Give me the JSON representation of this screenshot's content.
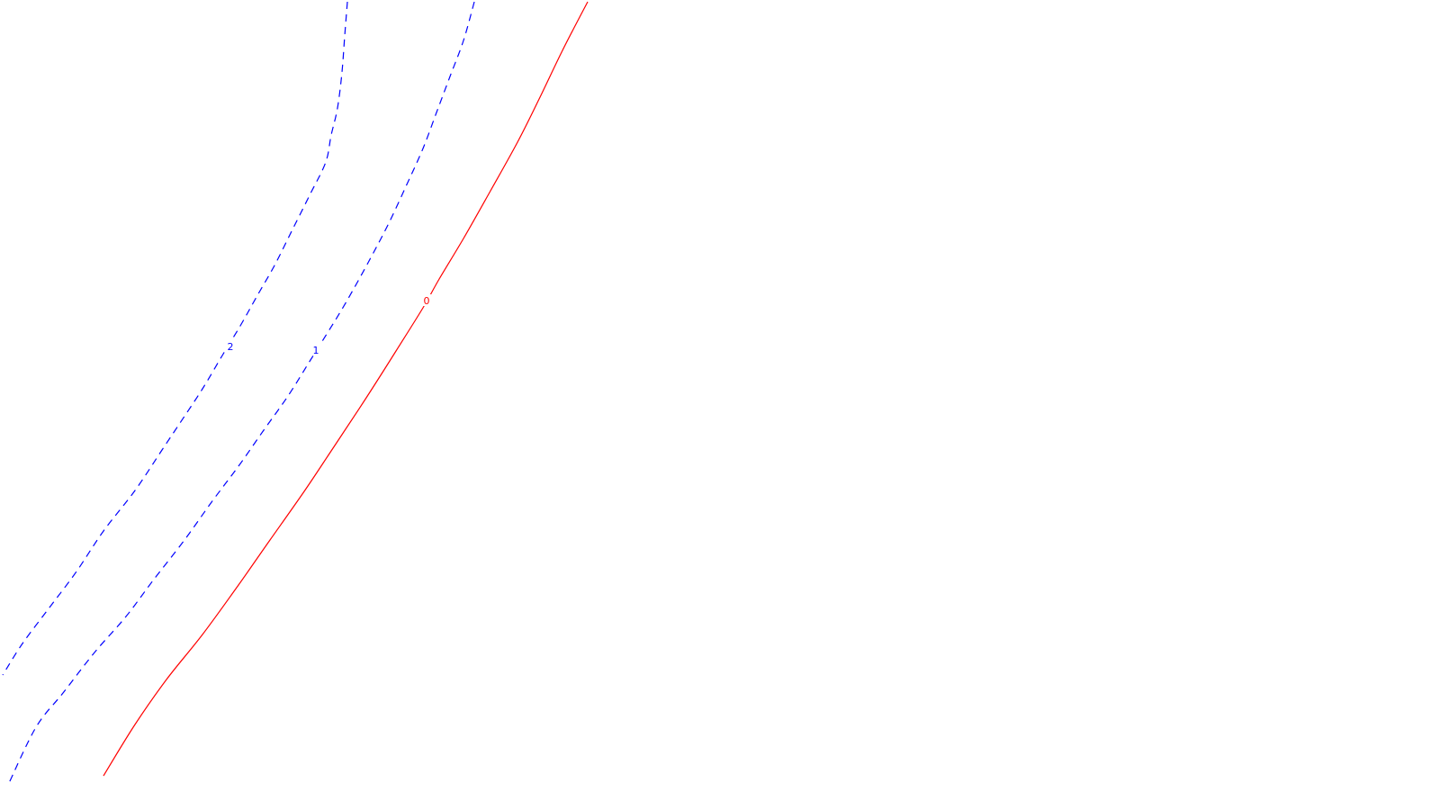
{
  "chart_data": {
    "type": "line",
    "subtype": "contour",
    "title": "",
    "xlabel": "",
    "ylabel": "",
    "grid": false,
    "legend": "none",
    "series": [
      {
        "name": "contour-0",
        "label": "0",
        "color": "#ff0000",
        "style": "solid",
        "points": [
          [
            653,
            2
          ],
          [
            625,
            56
          ],
          [
            600,
            108
          ],
          [
            575,
            158
          ],
          [
            545,
            212
          ],
          [
            515,
            265
          ],
          [
            488,
            310
          ],
          [
            470,
            342
          ],
          [
            440,
            390
          ],
          [
            405,
            445
          ],
          [
            370,
            498
          ],
          [
            338,
            546
          ],
          [
            300,
            600
          ],
          [
            265,
            650
          ],
          [
            225,
            705
          ],
          [
            185,
            755
          ],
          [
            150,
            805
          ],
          [
            115,
            862
          ]
        ]
      },
      {
        "name": "contour-1",
        "label": "1",
        "color": "#0000ff",
        "style": "dashed",
        "points": [
          [
            527,
            2
          ],
          [
            515,
            45
          ],
          [
            500,
            85
          ],
          [
            485,
            125
          ],
          [
            470,
            165
          ],
          [
            452,
            205
          ],
          [
            432,
            248
          ],
          [
            410,
            290
          ],
          [
            385,
            335
          ],
          [
            365,
            368
          ],
          [
            345,
            400
          ],
          [
            320,
            440
          ],
          [
            293,
            478
          ],
          [
            265,
            518
          ],
          [
            235,
            558
          ],
          [
            205,
            600
          ],
          [
            170,
            645
          ],
          [
            140,
            685
          ],
          [
            105,
            725
          ],
          [
            70,
            770
          ],
          [
            40,
            808
          ],
          [
            10,
            870
          ]
        ]
      },
      {
        "name": "contour-2",
        "label": "2",
        "color": "#0000ff",
        "style": "dashed",
        "points": [
          [
            386,
            2
          ],
          [
            383,
            40
          ],
          [
            380,
            80
          ],
          [
            375,
            120
          ],
          [
            368,
            150
          ],
          [
            362,
            180
          ],
          [
            345,
            215
          ],
          [
            325,
            255
          ],
          [
            305,
            295
          ],
          [
            285,
            330
          ],
          [
            267,
            362
          ],
          [
            247,
            395
          ],
          [
            225,
            432
          ],
          [
            200,
            470
          ],
          [
            180,
            500
          ],
          [
            150,
            545
          ],
          [
            115,
            590
          ],
          [
            85,
            635
          ],
          [
            55,
            675
          ],
          [
            25,
            715
          ],
          [
            3,
            750
          ]
        ]
      }
    ],
    "labels": [
      {
        "text": "0",
        "x": 474,
        "y": 334,
        "color": "#ff0000"
      },
      {
        "text": "1",
        "x": 351,
        "y": 389,
        "color": "#0000ff"
      },
      {
        "text": "2",
        "x": 256,
        "y": 385,
        "color": "#0000ff"
      }
    ]
  }
}
